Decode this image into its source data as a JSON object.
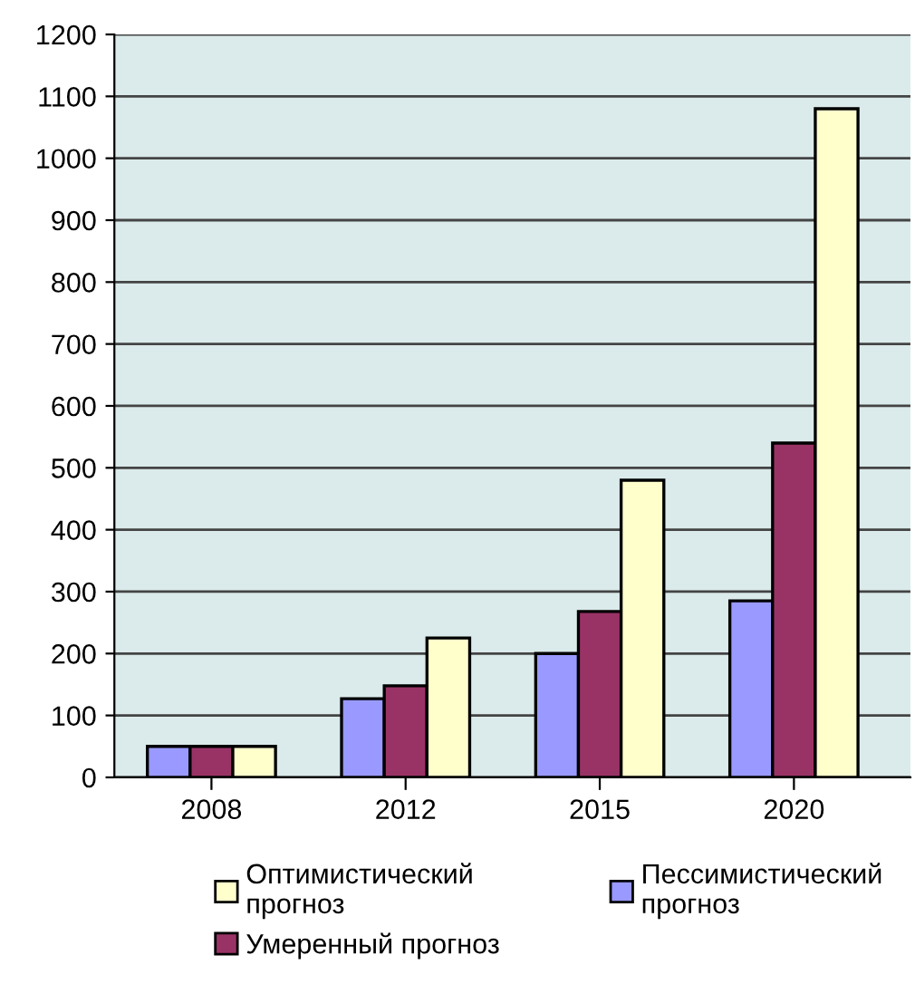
{
  "chart_data": {
    "type": "bar",
    "categories": [
      "2008",
      "2012",
      "2015",
      "2020"
    ],
    "series": [
      {
        "name": "Пессимистический прогноз",
        "color": "#9999ff",
        "values": [
          50,
          127,
          200,
          285
        ]
      },
      {
        "name": "Умеренный прогноз",
        "color": "#993366",
        "values": [
          50,
          148,
          268,
          540
        ]
      },
      {
        "name": "Оптимистический прогноз",
        "color": "#ffffcc",
        "values": [
          50,
          225,
          480,
          1080
        ]
      }
    ],
    "ylim": [
      0,
      1200
    ],
    "yticks": [
      0,
      100,
      200,
      300,
      400,
      500,
      600,
      700,
      800,
      900,
      1000,
      1100,
      1200
    ],
    "grid": "y",
    "legend": "bottom"
  }
}
